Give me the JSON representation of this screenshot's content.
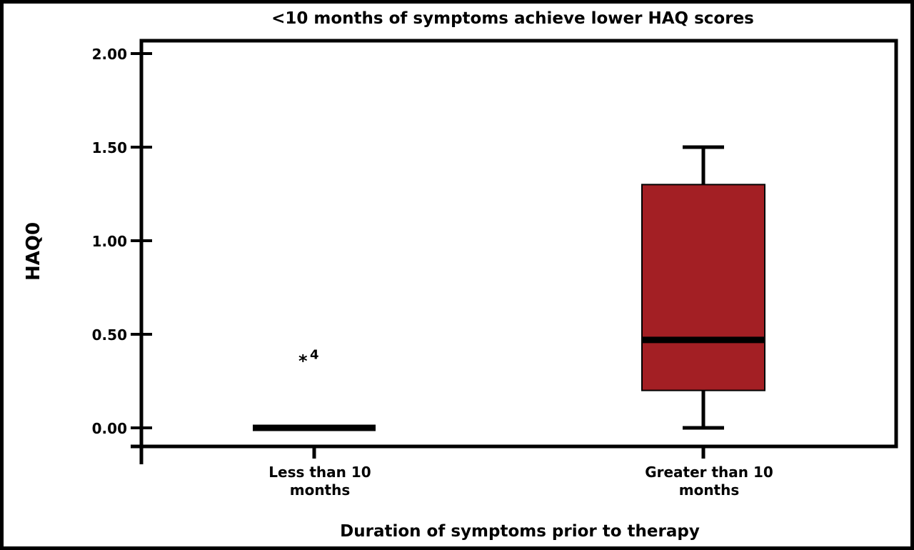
{
  "chart_data": {
    "type": "box",
    "title": "<10 months of symptoms achieve lower HAQ scores",
    "xlabel": "Duration of symptoms prior to therapy",
    "ylabel": "HAQ0",
    "ylim": [
      0,
      2.0
    ],
    "yticks": [
      "0.00",
      "0.50",
      "1.00",
      "1.50",
      "2.00"
    ],
    "grid": false,
    "categories": [
      [
        "Less than 10",
        "months"
      ],
      [
        "Greater than 10",
        "months"
      ]
    ],
    "boxes": [
      {
        "min": 0,
        "q1": 0,
        "median": 0,
        "q3": 0,
        "max": 0,
        "outliers": [
          {
            "value": 0.38,
            "label": "4",
            "marker": "*"
          }
        ]
      },
      {
        "min": 0,
        "q1": 0.2,
        "median": 0.47,
        "q3": 1.3,
        "max": 1.5,
        "outliers": []
      }
    ],
    "colors": {
      "box": "#a31f24",
      "line": "#000000"
    }
  }
}
